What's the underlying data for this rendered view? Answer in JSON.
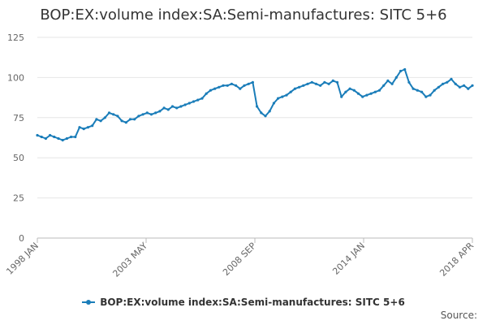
{
  "chart_data": {
    "type": "line",
    "title": "BOP:EX:volume index:SA:Semi-manufactures: SITC 5+6",
    "xlabel": "",
    "ylabel": "",
    "ylim": [
      0,
      125
    ],
    "yticks": [
      0,
      25,
      50,
      75,
      100,
      125
    ],
    "xlim": [
      "1998 JAN",
      "2018 APR"
    ],
    "xtick_labels": [
      "1998 JAN",
      "2003 MAY",
      "2008 SEP",
      "2014 JAN",
      "2018 APR"
    ],
    "grid": "horizontal",
    "legend_position": "bottom-center",
    "series": [
      {
        "name": "BOP:EX:volume index:SA:Semi-manufactures: SITC 5+6",
        "color": "#1a7db9",
        "x_start": "1998 JAN",
        "x_end": "2018 APR",
        "frequency": "quarterly",
        "values": [
          64,
          63,
          62,
          64,
          63,
          62,
          61,
          62,
          63,
          63,
          69,
          68,
          69,
          70,
          74,
          73,
          75,
          78,
          77,
          76,
          73,
          72,
          74,
          74,
          76,
          77,
          78,
          77,
          78,
          79,
          81,
          80,
          82,
          81,
          82,
          83,
          84,
          85,
          86,
          87,
          90,
          92,
          93,
          94,
          95,
          95,
          96,
          95,
          93,
          95,
          96,
          97,
          82,
          78,
          76,
          79,
          84,
          87,
          88,
          89,
          91,
          93,
          94,
          95,
          96,
          97,
          96,
          95,
          97,
          96,
          98,
          97,
          88,
          91,
          93,
          92,
          90,
          88,
          89,
          90,
          91,
          92,
          95,
          98,
          96,
          100,
          104,
          105,
          97,
          93,
          92,
          91,
          88,
          89,
          92,
          94,
          96,
          97,
          99,
          96,
          94,
          95,
          93,
          95
        ]
      }
    ]
  },
  "legend": {
    "label": "BOP:EX:volume index:SA:Semi-manufactures: SITC 5+6"
  },
  "source": {
    "label": "Source:"
  }
}
